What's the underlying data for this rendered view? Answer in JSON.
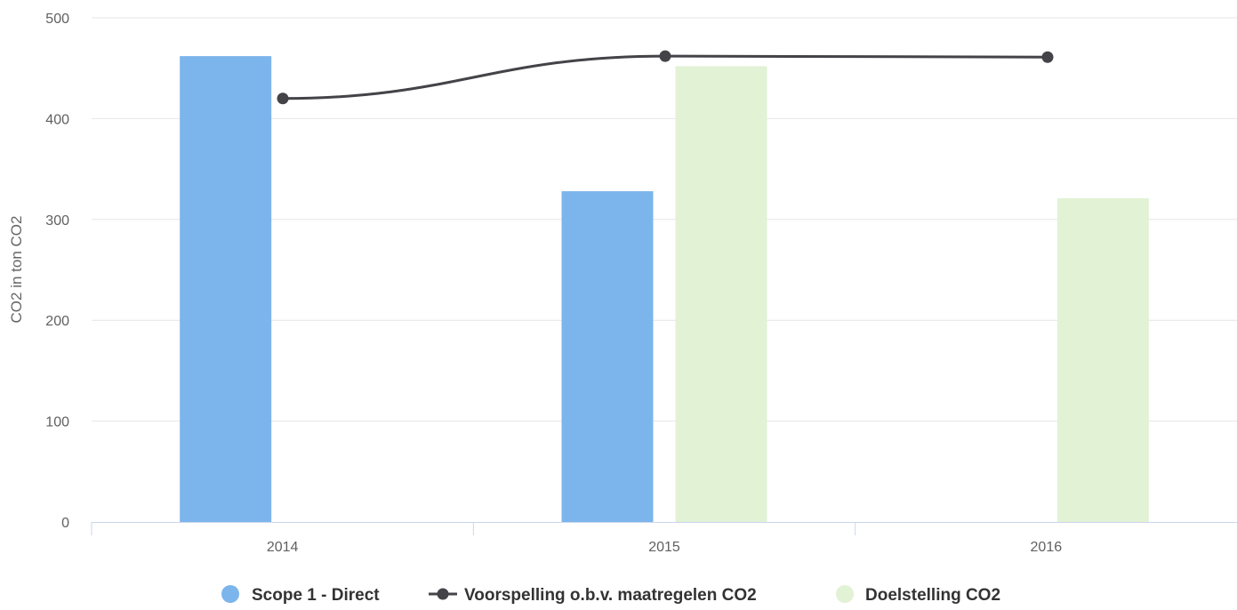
{
  "chart_data": {
    "type": "bar",
    "categories": [
      "2014",
      "2015",
      "2016"
    ],
    "ylabel": "CO2 in ton CO2",
    "ylim": [
      0,
      500
    ],
    "yticks": [
      0,
      100,
      200,
      300,
      400,
      500
    ],
    "grid": true,
    "legend_placement": "bottom-center",
    "series": [
      {
        "name": "Scope 1 - Direct",
        "kind": "bar",
        "color": "#7cb5ec",
        "values": [
          462,
          328,
          null
        ]
      },
      {
        "name": "Voorspelling o.b.v. maatregelen CO2",
        "kind": "line",
        "color": "#434348",
        "values": [
          420,
          462,
          461
        ]
      },
      {
        "name": "Doelstelling CO2",
        "kind": "bar",
        "color": "#e2f2d5",
        "values": [
          null,
          452,
          321
        ]
      }
    ]
  }
}
